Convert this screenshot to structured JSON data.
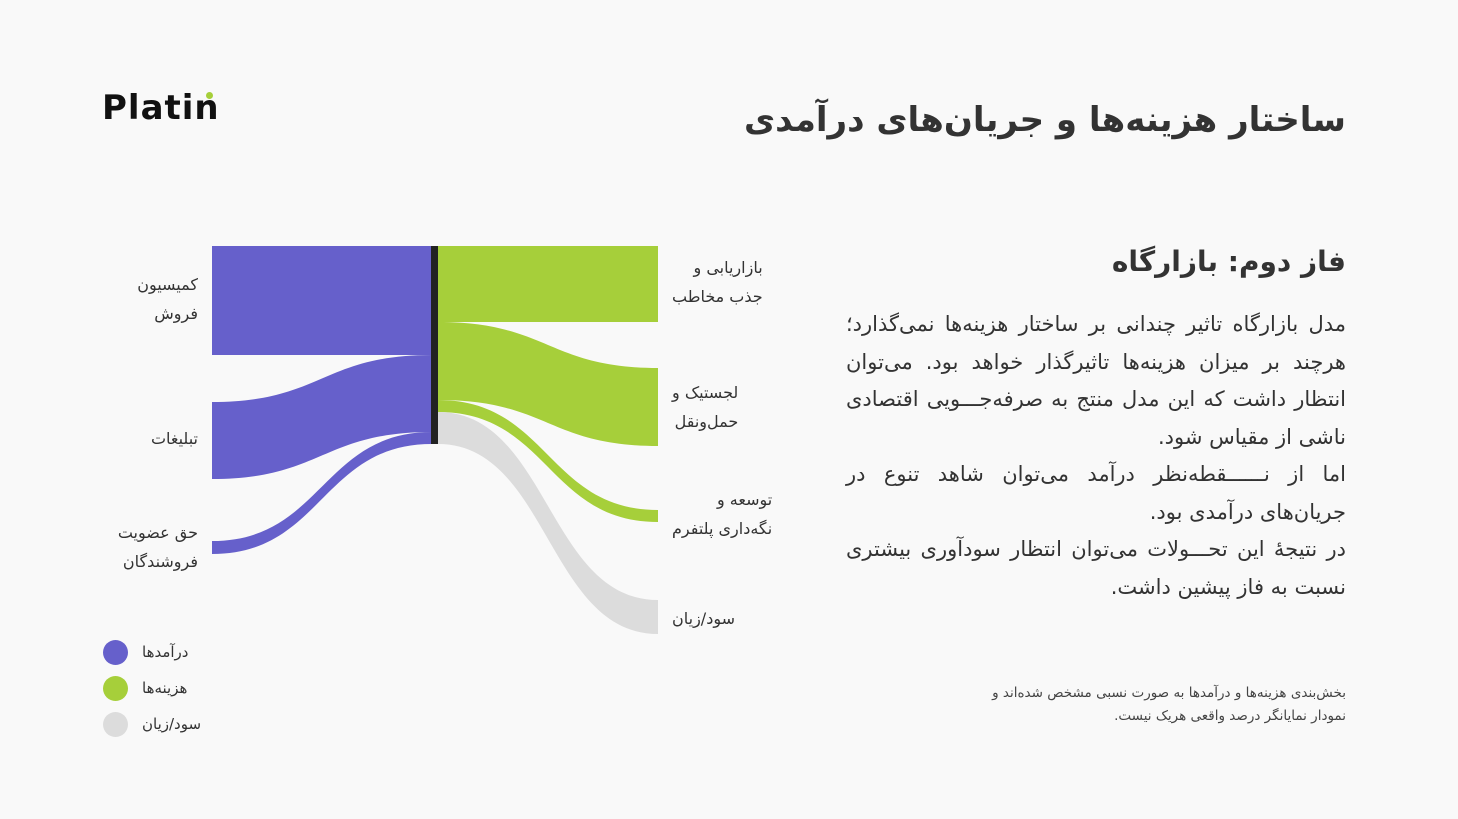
{
  "logo": {
    "text": "Platin"
  },
  "title": "ساختار هزینه‌ها و جریان‌های درآمدی",
  "section": {
    "subtitle": "فاز دوم: بازارگاه",
    "paragraphs": [
      "مدل بازارگاه تاثیر چندانی بر ساختار هزینه‌ها نمی‌گذارد؛ هرچند بر میزان هزینه‌ها تاثیرگذار خواهد بود. می‌توان انتظار داشت که این مدل منتج به صرفه‌جـــویی اقتصادی ناشی از مقیاس شود.",
      "اما از نــــــقطه‌نظر درآمد می‌توان شاهد تنوع در جریان‌های درآمدی بود.",
      "در نتیجهٔ این تحـــولات می‌توان انتظار سودآوری بیشتری نسبت به فاز پیشین داشت."
    ],
    "note": "بخش‌بندی هزینه‌ها و درآمدها به صورت نسبی مشخص شده‌اند و نمودار نمایانگر درصد واقعی هریک نیست."
  },
  "chart_data": {
    "type": "sankey",
    "colors": {
      "income": "#6660cb",
      "cost": "#a6cf3a",
      "profit": "#dcdcdc",
      "hub": "#222222"
    },
    "sources": [
      {
        "label": "کمیسیون\nفروش",
        "kind": "income"
      },
      {
        "label": "تبلیغات",
        "kind": "income"
      },
      {
        "label": "حق عضویت\nفروشندگان",
        "kind": "income"
      }
    ],
    "targets": [
      {
        "label": "بازاریابی و\nجذب مخاطب",
        "kind": "cost"
      },
      {
        "label": "لجستیک و\nحمل‌ونقل",
        "kind": "cost"
      },
      {
        "label": "توسعه و\nنگه‌داری پلتفرم",
        "kind": "cost"
      },
      {
        "label": "سود/زیان",
        "kind": "profit"
      }
    ],
    "legend": [
      {
        "label": "درآمدها",
        "kind": "income"
      },
      {
        "label": "هزینه‌ها",
        "kind": "cost"
      },
      {
        "label": "سود/زیان",
        "kind": "profit"
      }
    ],
    "legend_position": "bottom-left"
  }
}
